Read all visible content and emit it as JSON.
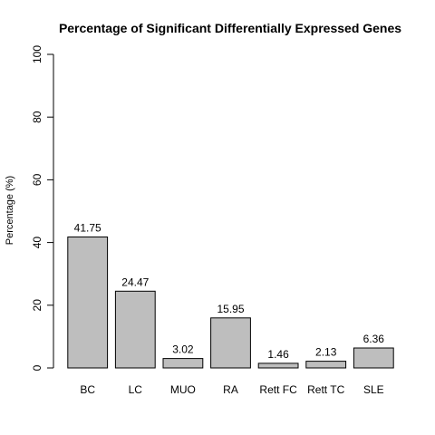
{
  "chart_data": {
    "type": "bar",
    "title": "Percentage of Significant Differentially Expressed Genes",
    "xlabel": "",
    "ylabel": "Percentage (%)",
    "ylim": [
      0,
      100
    ],
    "yticks": [
      0,
      20,
      40,
      60,
      80,
      100
    ],
    "categories": [
      "BC",
      "LC",
      "MUO",
      "RA",
      "Rett FC",
      "Rett TC",
      "SLE"
    ],
    "values": [
      41.75,
      24.47,
      3.02,
      15.95,
      1.46,
      2.13,
      6.36
    ],
    "value_labels": [
      "41.75",
      "24.47",
      "3.02",
      "15.95",
      "1.46",
      "2.13",
      "6.36"
    ],
    "bar_color": "#bebebe",
    "grid": false,
    "legend": "none"
  }
}
